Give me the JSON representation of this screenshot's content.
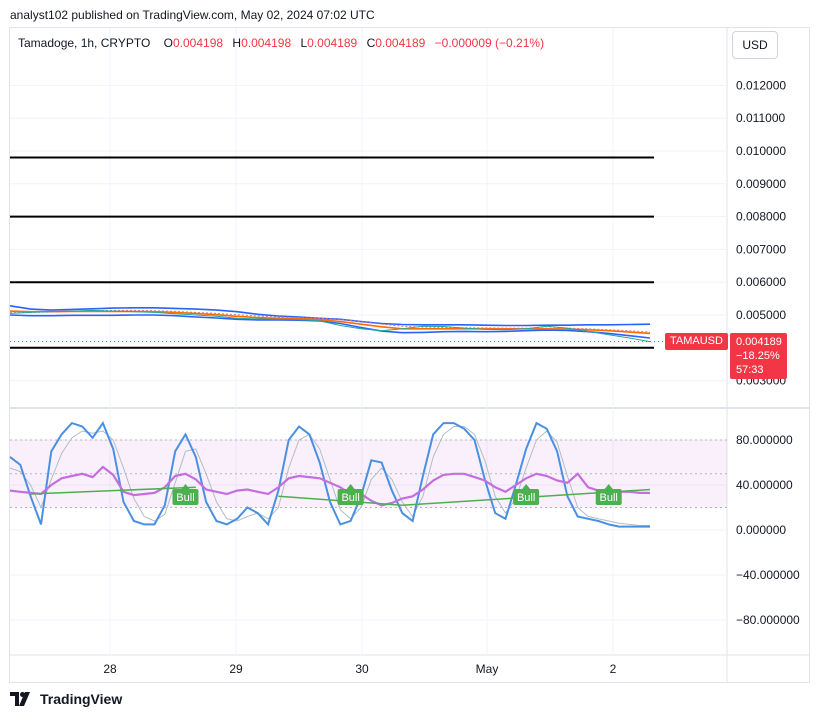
{
  "header": {
    "attribution": "analyst102 published on TradingView.com, May 02, 2024 07:02 UTC",
    "symbol_line": "Tamadoge, 1h, CRYPTO",
    "ohlc": [
      {
        "key": "O",
        "value": "0.004198"
      },
      {
        "key": "H",
        "value": "0.004198"
      },
      {
        "key": "L",
        "value": "0.004189"
      },
      {
        "key": "C",
        "value": "0.004189"
      }
    ],
    "change": "−0.000009 (−0.21%)"
  },
  "currency_button": "USD",
  "price_tag": {
    "symbol": "TAMAUSD",
    "price": "0.004189",
    "change": "−18.25%",
    "countdown": "57:33"
  },
  "footer": {
    "brand": "TradingView"
  },
  "colors": {
    "down": "#f23645",
    "up": "#089981",
    "bollinger": "#2962ff",
    "ma": "#ff6d00",
    "stoch_k": "#4a90e2",
    "rsi": "#c56ee0",
    "trend": "#4caf50",
    "bull": "#4caf50"
  },
  "chart_data": [
    {
      "type": "line",
      "title": "Tamadoge, 1h, CRYPTO",
      "y_axis_labels": [
        "0.012000",
        "0.011000",
        "0.010000",
        "0.009000",
        "0.008000",
        "0.007000",
        "0.006000",
        "0.005000",
        "0.003000"
      ],
      "x_axis_labels": [
        "28",
        "29",
        "30",
        "May",
        "2"
      ],
      "ylim": [
        0.0029,
        0.0129
      ],
      "x": [
        0,
        6,
        12,
        18,
        24,
        30,
        36,
        42,
        48,
        54,
        60,
        66,
        72,
        78,
        84,
        90,
        96,
        102,
        108,
        114,
        120,
        126,
        132,
        138,
        144,
        150,
        156,
        162,
        168,
        174,
        180,
        186
      ],
      "horizontal_levels": [
        0.0098,
        0.008,
        0.006,
        0.004
      ],
      "series": [
        {
          "values": [
            0.00528,
            0.00518,
            0.00515,
            0.00517,
            0.00519,
            0.00521,
            0.00522,
            0.00522,
            0.0052,
            0.00518,
            0.00515,
            0.0051,
            0.00502,
            0.00497,
            0.00494,
            0.0049,
            0.00487,
            0.0048,
            0.00474,
            0.00471,
            0.0047,
            0.0047,
            0.0047,
            0.00469,
            0.00468,
            0.00468,
            0.00469,
            0.00469,
            0.0047,
            0.0047,
            0.00471,
            0.00472
          ]
        },
        {
          "values": [
            0.005,
            0.00498,
            0.00498,
            0.00499,
            0.00499,
            0.00499,
            0.005,
            0.005,
            0.00498,
            0.00494,
            0.00491,
            0.00487,
            0.00485,
            0.00485,
            0.00484,
            0.00482,
            0.00474,
            0.00462,
            0.00451,
            0.00446,
            0.00447,
            0.00449,
            0.0045,
            0.00449,
            0.0045,
            0.00452,
            0.00454,
            0.00453,
            0.00449,
            0.00444,
            0.00437,
            0.0043
          ]
        },
        {
          "values": [
            0.00512,
            0.0051,
            0.0051,
            0.00511,
            0.00511,
            0.00511,
            0.00511,
            0.0051,
            0.00508,
            0.00505,
            0.00501,
            0.00496,
            0.00492,
            0.0049,
            0.00489,
            0.00486,
            0.0048,
            0.00472,
            0.00464,
            0.00458,
            0.00458,
            0.00458,
            0.00458,
            0.00458,
            0.00458,
            0.00458,
            0.00458,
            0.00457,
            0.00455,
            0.00452,
            0.00448,
            0.00444
          ]
        },
        {
          "values": [
            0.00507,
            0.00508,
            0.00509,
            0.00511,
            0.00513,
            0.00514,
            0.00514,
            0.00513,
            0.00511,
            0.00508,
            0.00505,
            0.00501,
            0.00497,
            0.00494,
            0.00492,
            0.0049,
            0.00486,
            0.0048,
            0.00472,
            0.00466,
            0.00463,
            0.00462,
            0.00461,
            0.00461,
            0.0046,
            0.0046,
            0.0046,
            0.0046,
            0.00458,
            0.00455,
            0.00452,
            0.00448
          ]
        },
        {
          "values": [
            0.00505,
            0.00508,
            0.0051,
            0.00512,
            0.00514,
            0.00512,
            0.0051,
            0.00508,
            0.00504,
            0.005,
            0.00496,
            0.0049,
            0.00488,
            0.00487,
            0.00486,
            0.00482,
            0.00468,
            0.00458,
            0.00452,
            0.00458,
            0.00466,
            0.00465,
            0.0046,
            0.00456,
            0.00455,
            0.00458,
            0.00466,
            0.0046,
            0.0045,
            0.0044,
            0.0043,
            0.00419
          ]
        }
      ]
    },
    {
      "type": "line",
      "y_axis_labels": [
        "80.000000",
        "40.000000",
        "0.000000",
        "−40.000000",
        "−80.000000"
      ],
      "ylim": [
        -110,
        110
      ],
      "band": [
        20,
        80
      ],
      "x": [
        0,
        3,
        6,
        9,
        12,
        15,
        18,
        21,
        24,
        27,
        30,
        33,
        36,
        39,
        42,
        45,
        48,
        51,
        54,
        57,
        60,
        63,
        66,
        69,
        72,
        75,
        78,
        81,
        84,
        87,
        90,
        93,
        96,
        99,
        102,
        105,
        108,
        111,
        114,
        117,
        120,
        123,
        126,
        129,
        132,
        135,
        138,
        141,
        144,
        147,
        150,
        153,
        156,
        159,
        162,
        165,
        168,
        171,
        174,
        177,
        180,
        183,
        186
      ],
      "trend_lines": [
        {
          "from": [
            6,
            32
          ],
          "to": [
            54,
            38
          ]
        },
        {
          "from": [
            78,
            30
          ],
          "to": [
            114,
            22
          ]
        },
        {
          "from": [
            114,
            22
          ],
          "to": [
            186,
            36
          ]
        }
      ],
      "annotations": [
        {
          "text": "Bull",
          "x": 51
        },
        {
          "text": "Bull",
          "x": 99
        },
        {
          "text": "Bull",
          "x": 150
        },
        {
          "text": "Bull",
          "x": 174
        }
      ],
      "series": [
        {
          "values": [
            65,
            58,
            30,
            5,
            70,
            85,
            95,
            92,
            82,
            95,
            72,
            25,
            8,
            5,
            5,
            22,
            70,
            85,
            65,
            25,
            8,
            5,
            10,
            20,
            15,
            5,
            35,
            80,
            92,
            85,
            60,
            25,
            5,
            8,
            30,
            62,
            60,
            35,
            15,
            8,
            48,
            85,
            95,
            95,
            90,
            80,
            45,
            15,
            10,
            40,
            72,
            95,
            90,
            70,
            30,
            12,
            10,
            8,
            5,
            3,
            3,
            3,
            3
          ]
        },
        {
          "values": [
            55,
            52,
            40,
            20,
            45,
            68,
            82,
            88,
            86,
            88,
            80,
            55,
            28,
            12,
            8,
            14,
            42,
            70,
            72,
            50,
            25,
            10,
            8,
            12,
            15,
            10,
            20,
            55,
            80,
            85,
            72,
            45,
            18,
            10,
            20,
            45,
            55,
            45,
            25,
            12,
            30,
            65,
            85,
            92,
            92,
            85,
            62,
            30,
            15,
            28,
            55,
            80,
            88,
            78,
            48,
            20,
            12,
            10,
            8,
            6,
            5,
            4,
            4
          ]
        },
        {
          "values": [
            35,
            34,
            33,
            32,
            40,
            46,
            48,
            50,
            47,
            56,
            49,
            34,
            31,
            32,
            33,
            38,
            48,
            50,
            45,
            36,
            34,
            32,
            35,
            36,
            34,
            32,
            38,
            46,
            48,
            47,
            46,
            42,
            38,
            32,
            32,
            26,
            22,
            24,
            28,
            30,
            36,
            44,
            49,
            50,
            50,
            47,
            44,
            38,
            34,
            40,
            46,
            50,
            48,
            44,
            42,
            50,
            38,
            35,
            36,
            34,
            34,
            33,
            33
          ]
        }
      ]
    }
  ]
}
